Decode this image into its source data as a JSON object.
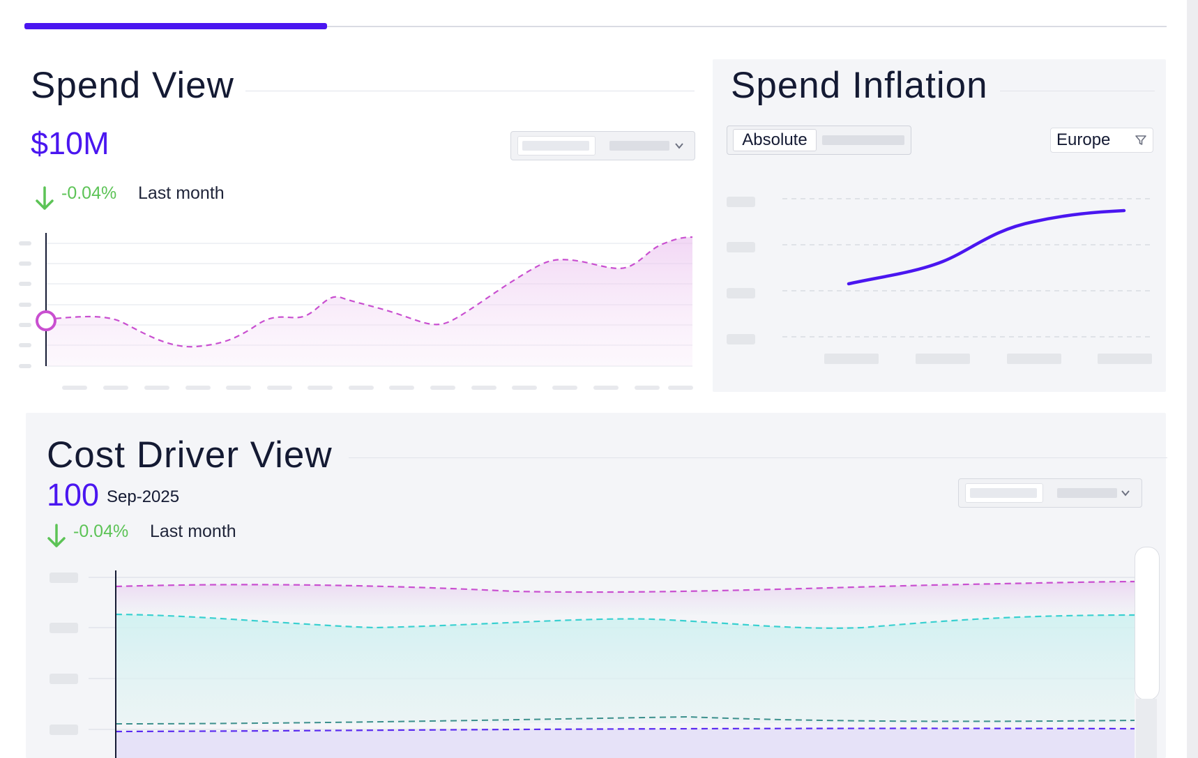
{
  "tabs": {
    "active_index": 0
  },
  "spend_view": {
    "title": "Spend View",
    "kpi_value": "$10M",
    "delta": "-0.04%",
    "delta_label": "Last month",
    "icons": {
      "delta": "arrow-down-icon",
      "dropdown": "chevron-down-icon"
    }
  },
  "spend_inflation": {
    "title": "Spend Inflation",
    "mode_active": "Absolute",
    "region_filter": "Europe",
    "icons": {
      "filter": "filter-icon"
    }
  },
  "cost_driver_view": {
    "title": "Cost Driver View",
    "kpi_value": "100",
    "kpi_date": "Sep-2025",
    "delta": "-0.04%",
    "delta_label": "Last month",
    "icons": {
      "delta": "arrow-down-icon",
      "dropdown": "chevron-down-icon"
    }
  },
  "colors": {
    "accent": "#4a16f0",
    "positive": "#5cc356",
    "spend_line": "#c94fd0",
    "driver_magenta": "#c94fd0",
    "driver_cyan": "#39d0d0",
    "driver_teal": "#3b8f8c",
    "driver_purple": "#5a2bf0"
  }
}
